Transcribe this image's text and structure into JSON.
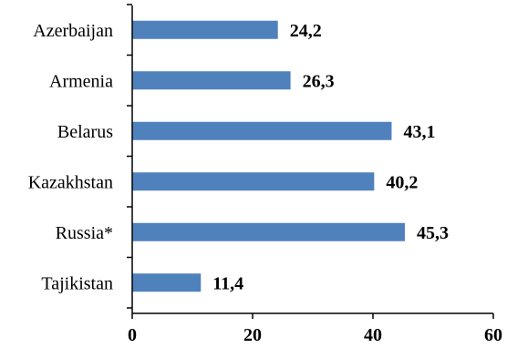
{
  "chart_data": {
    "type": "bar",
    "orientation": "horizontal",
    "title": "",
    "xlabel": "",
    "ylabel": "",
    "categories": [
      "Azerbaijan",
      "Armenia",
      "Belarus",
      "Kazakhstan",
      "Russia*",
      "Tajikistan"
    ],
    "values": [
      24.2,
      26.3,
      43.1,
      40.2,
      45.3,
      11.4
    ],
    "value_labels": [
      "24,2",
      "26,3",
      "43,1",
      "40,2",
      "45,3",
      "11,4"
    ],
    "xlim": [
      0,
      60
    ],
    "xticks": [
      0,
      20,
      40,
      60
    ],
    "xtick_labels": [
      "0",
      "20",
      "40",
      "60"
    ],
    "grid": false,
    "legend": "none",
    "bar_color": "#4F81BD"
  }
}
